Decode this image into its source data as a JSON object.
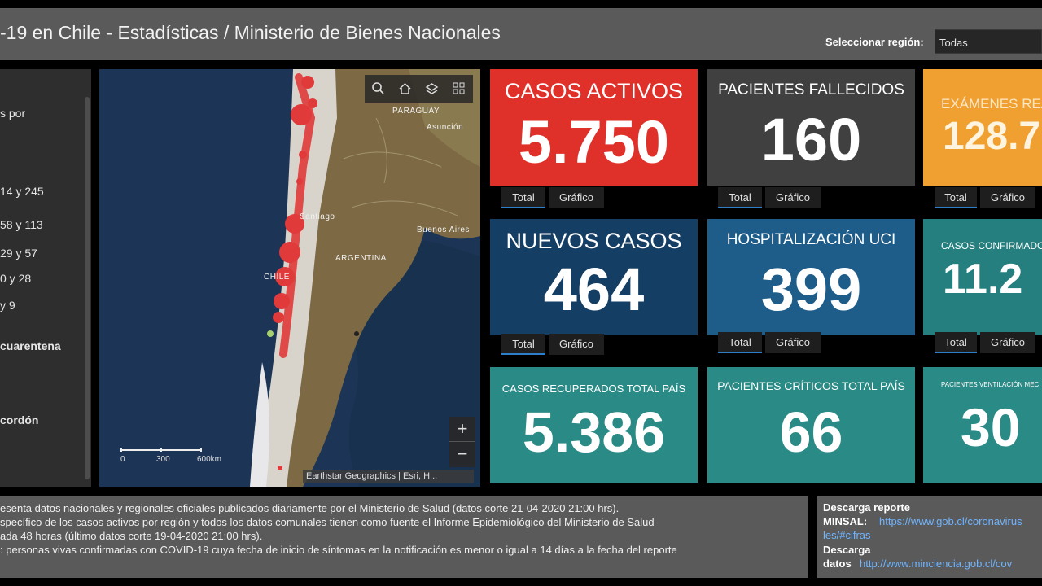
{
  "header": {
    "title": "-19 en Chile - Estadísticas / Ministerio de Bienes Nacionales",
    "region_label": "Seleccionar región:",
    "region_value": "Todas"
  },
  "legend": {
    "items": [
      "s por",
      "14 y 245",
      "58 y 113",
      "29 y 57",
      "0 y 28",
      "y 9",
      "cuarentena",
      "cordón"
    ]
  },
  "map": {
    "labels": [
      "PARAGUAY",
      "Asunción",
      "Santiago",
      "Buenos Aires",
      "ARGENTINA",
      "CHILE"
    ],
    "scale": [
      "0",
      "300",
      "600km"
    ],
    "attribution": "Earthstar Geographics | Esri, H...",
    "zoom_in": "+",
    "zoom_out": "−",
    "tools": [
      "search-icon",
      "home-icon",
      "layers-icon",
      "basemap-gallery-icon"
    ],
    "colors": {
      "ocean": "#1c3557",
      "land": "#7d6a45",
      "case_marker": "#e03a3a"
    }
  },
  "cards": [
    {
      "label": "CASOS ACTIVOS",
      "value": "5.750",
      "color": "#e0302a",
      "tabs": [
        "Total",
        "Gráfico"
      ]
    },
    {
      "label": "PACIENTES FALLECIDOS",
      "value": "160",
      "color": "#404040",
      "tabs": [
        "Total",
        "Gráfico"
      ]
    },
    {
      "label": "EXÁMENES REA",
      "value": "128.7",
      "color": "#f0a030",
      "tabs": [
        "Total",
        "Gráfico"
      ]
    },
    {
      "label": "NUEVOS CASOS",
      "value": "464",
      "color": "#153e64",
      "tabs": [
        "Total",
        "Gráfico"
      ]
    },
    {
      "label": "HOSPITALIZACIÓN UCI",
      "value": "399",
      "color": "#1e5c8a",
      "tabs": [
        "Total",
        "Gráfico"
      ]
    },
    {
      "label": "CASOS CONFIRMADO",
      "value": "11.2",
      "color": "#257f7f",
      "tabs": [
        "Total",
        "Gráfico"
      ]
    },
    {
      "label": "CASOS RECUPERADOS TOTAL PAÍS",
      "value": "5.386",
      "color": "#2a8a86",
      "tabs": []
    },
    {
      "label": "PACIENTES CRÍTICOS TOTAL PAÍS",
      "value": "66",
      "color": "#2a8a86",
      "tabs": []
    },
    {
      "label": "PACIENTES VENTILACIÓN MEC",
      "value": "30",
      "color": "#2a8a86",
      "tabs": []
    }
  ],
  "footer": {
    "lines": [
      "esenta datos nacionales y regionales oficiales publicados diariamente por el Ministerio de Salud (datos corte 21-04-2020 21:00 hrs).",
      "specífico de los casos activos por región y todos los datos comunales tienen como fuente el Informe Epidemiológico del Ministerio de Salud",
      "ada 48 horas (último datos corte 19-04-2020 21:00 hrs).",
      ": personas vivas confirmadas con COVID-19 cuya fecha de inicio de síntomas en la notificación es menor o igual a 14 días a la fecha del reporte"
    ]
  },
  "download": {
    "title": "Descarga reporte",
    "minsal_label": "MINSAL:",
    "minsal_link": "https://www.gob.cl/coronavirus",
    "minsal_link2": "les/#cifras",
    "title2": "Descarga",
    "datos_label": "datos",
    "datos_link": "http://www.minciencia.gob.cl/cov"
  }
}
